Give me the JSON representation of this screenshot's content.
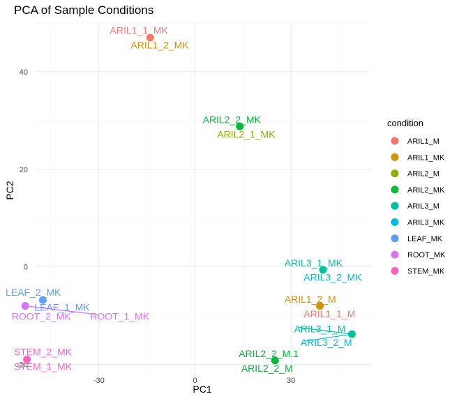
{
  "chart_data": {
    "type": "scatter",
    "title": "PCA of Sample Conditions",
    "xlabel": "PC1",
    "ylabel": "PC2",
    "xlim": [
      -50,
      55
    ],
    "ylim": [
      -22.5,
      50
    ],
    "x_ticks": [
      -30,
      0,
      30
    ],
    "y_ticks": [
      -20,
      0,
      20,
      40
    ],
    "grid": true,
    "legend": {
      "title": "condition",
      "placement": "right",
      "entries": [
        {
          "name": "ARIL1_M",
          "color": "#F8766D"
        },
        {
          "name": "ARIL1_MK",
          "color": "#D39200"
        },
        {
          "name": "ARIL2_M",
          "color": "#93AA00"
        },
        {
          "name": "ARIL2_MK",
          "color": "#00BA38"
        },
        {
          "name": "ARIL3_M",
          "color": "#00C19F"
        },
        {
          "name": "ARIL3_MK",
          "color": "#00B9E3"
        },
        {
          "name": "LEAF_MK",
          "color": "#619CFF"
        },
        {
          "name": "ROOT_MK",
          "color": "#DB72FB"
        },
        {
          "name": "STEM_MK",
          "color": "#FF61C3"
        }
      ]
    },
    "points": [
      {
        "label": "ARIL1_1_MK",
        "condition": "ARIL1_M",
        "x": -14,
        "y": 47,
        "lx": -17.5,
        "ly": 48.5
      },
      {
        "label": "ARIL1_2_MK",
        "condition": "ARIL1_MK",
        "x": -14,
        "y": 47,
        "lx": -11,
        "ly": 45.5
      },
      {
        "label": "ARIL2_2_MK",
        "condition": "ARIL2_MK",
        "x": 14,
        "y": 28.8,
        "lx": 11.5,
        "ly": 30.2
      },
      {
        "label": "ARIL2_1_MK",
        "condition": "ARIL2_M",
        "x": 14,
        "y": 28.8,
        "lx": 16,
        "ly": 27.2
      },
      {
        "label": "ARIL3_1_MK",
        "condition": "ARIL3_M",
        "x": 40,
        "y": -0.6,
        "lx": 37,
        "ly": 0.8
      },
      {
        "label": "ARIL3_2_MK",
        "condition": "ARIL3_MK",
        "x": 40,
        "y": -0.6,
        "lx": 43,
        "ly": -2.1
      },
      {
        "label": "ARIL1_2_M",
        "condition": "ARIL1_MK",
        "x": 39,
        "y": -8,
        "lx": 36,
        "ly": -6.6
      },
      {
        "label": "ARIL1_1_M",
        "condition": "ARIL1_M",
        "x": 39,
        "y": -8,
        "lx": 42,
        "ly": -9.6
      },
      {
        "label": "ARIL3_1_M",
        "condition": "ARIL3_M",
        "x": 49,
        "y": -13.8,
        "lx": 39,
        "ly": -12.7
      },
      {
        "label": "ARIL3_2_M",
        "condition": "ARIL3_MK",
        "x": 49,
        "y": -13.8,
        "lx": 41,
        "ly": -15.5
      },
      {
        "label": "ARIL2_2_M.1",
        "condition": "ARIL2_MK",
        "x": 25,
        "y": -19.2,
        "lx": 23,
        "ly": -17.8
      },
      {
        "label": "ARIL2_2_M",
        "condition": "ARIL2_MK",
        "x": 25,
        "y": -19.2,
        "lx": 22.5,
        "ly": -20.8
      },
      {
        "label": "LEAF_2_MK",
        "condition": "LEAF_MK",
        "x": -47.5,
        "y": -6.8,
        "lx": -50.5,
        "ly": -5.2
      },
      {
        "label": "LEAF_1_MK",
        "condition": "LEAF_MK",
        "x": -47.5,
        "y": -6.8,
        "lx": -41.5,
        "ly": -8.3
      },
      {
        "label": "ROOT_2_MK",
        "condition": "ROOT_MK",
        "x": -53,
        "y": -8,
        "lx": -48,
        "ly": -10.1
      },
      {
        "label": "ROOT_1_MK",
        "condition": "ROOT_MK",
        "x": -53,
        "y": -8,
        "lx": -23.5,
        "ly": -10.1
      },
      {
        "label": "STEM_2_MK",
        "condition": "STEM_MK",
        "x": -52.5,
        "y": -19,
        "lx": -47.5,
        "ly": -17.4
      },
      {
        "label": "STEM_1_MK",
        "condition": "STEM_MK",
        "x": -52.5,
        "y": -19,
        "lx": -47.5,
        "ly": -20.4
      }
    ]
  }
}
